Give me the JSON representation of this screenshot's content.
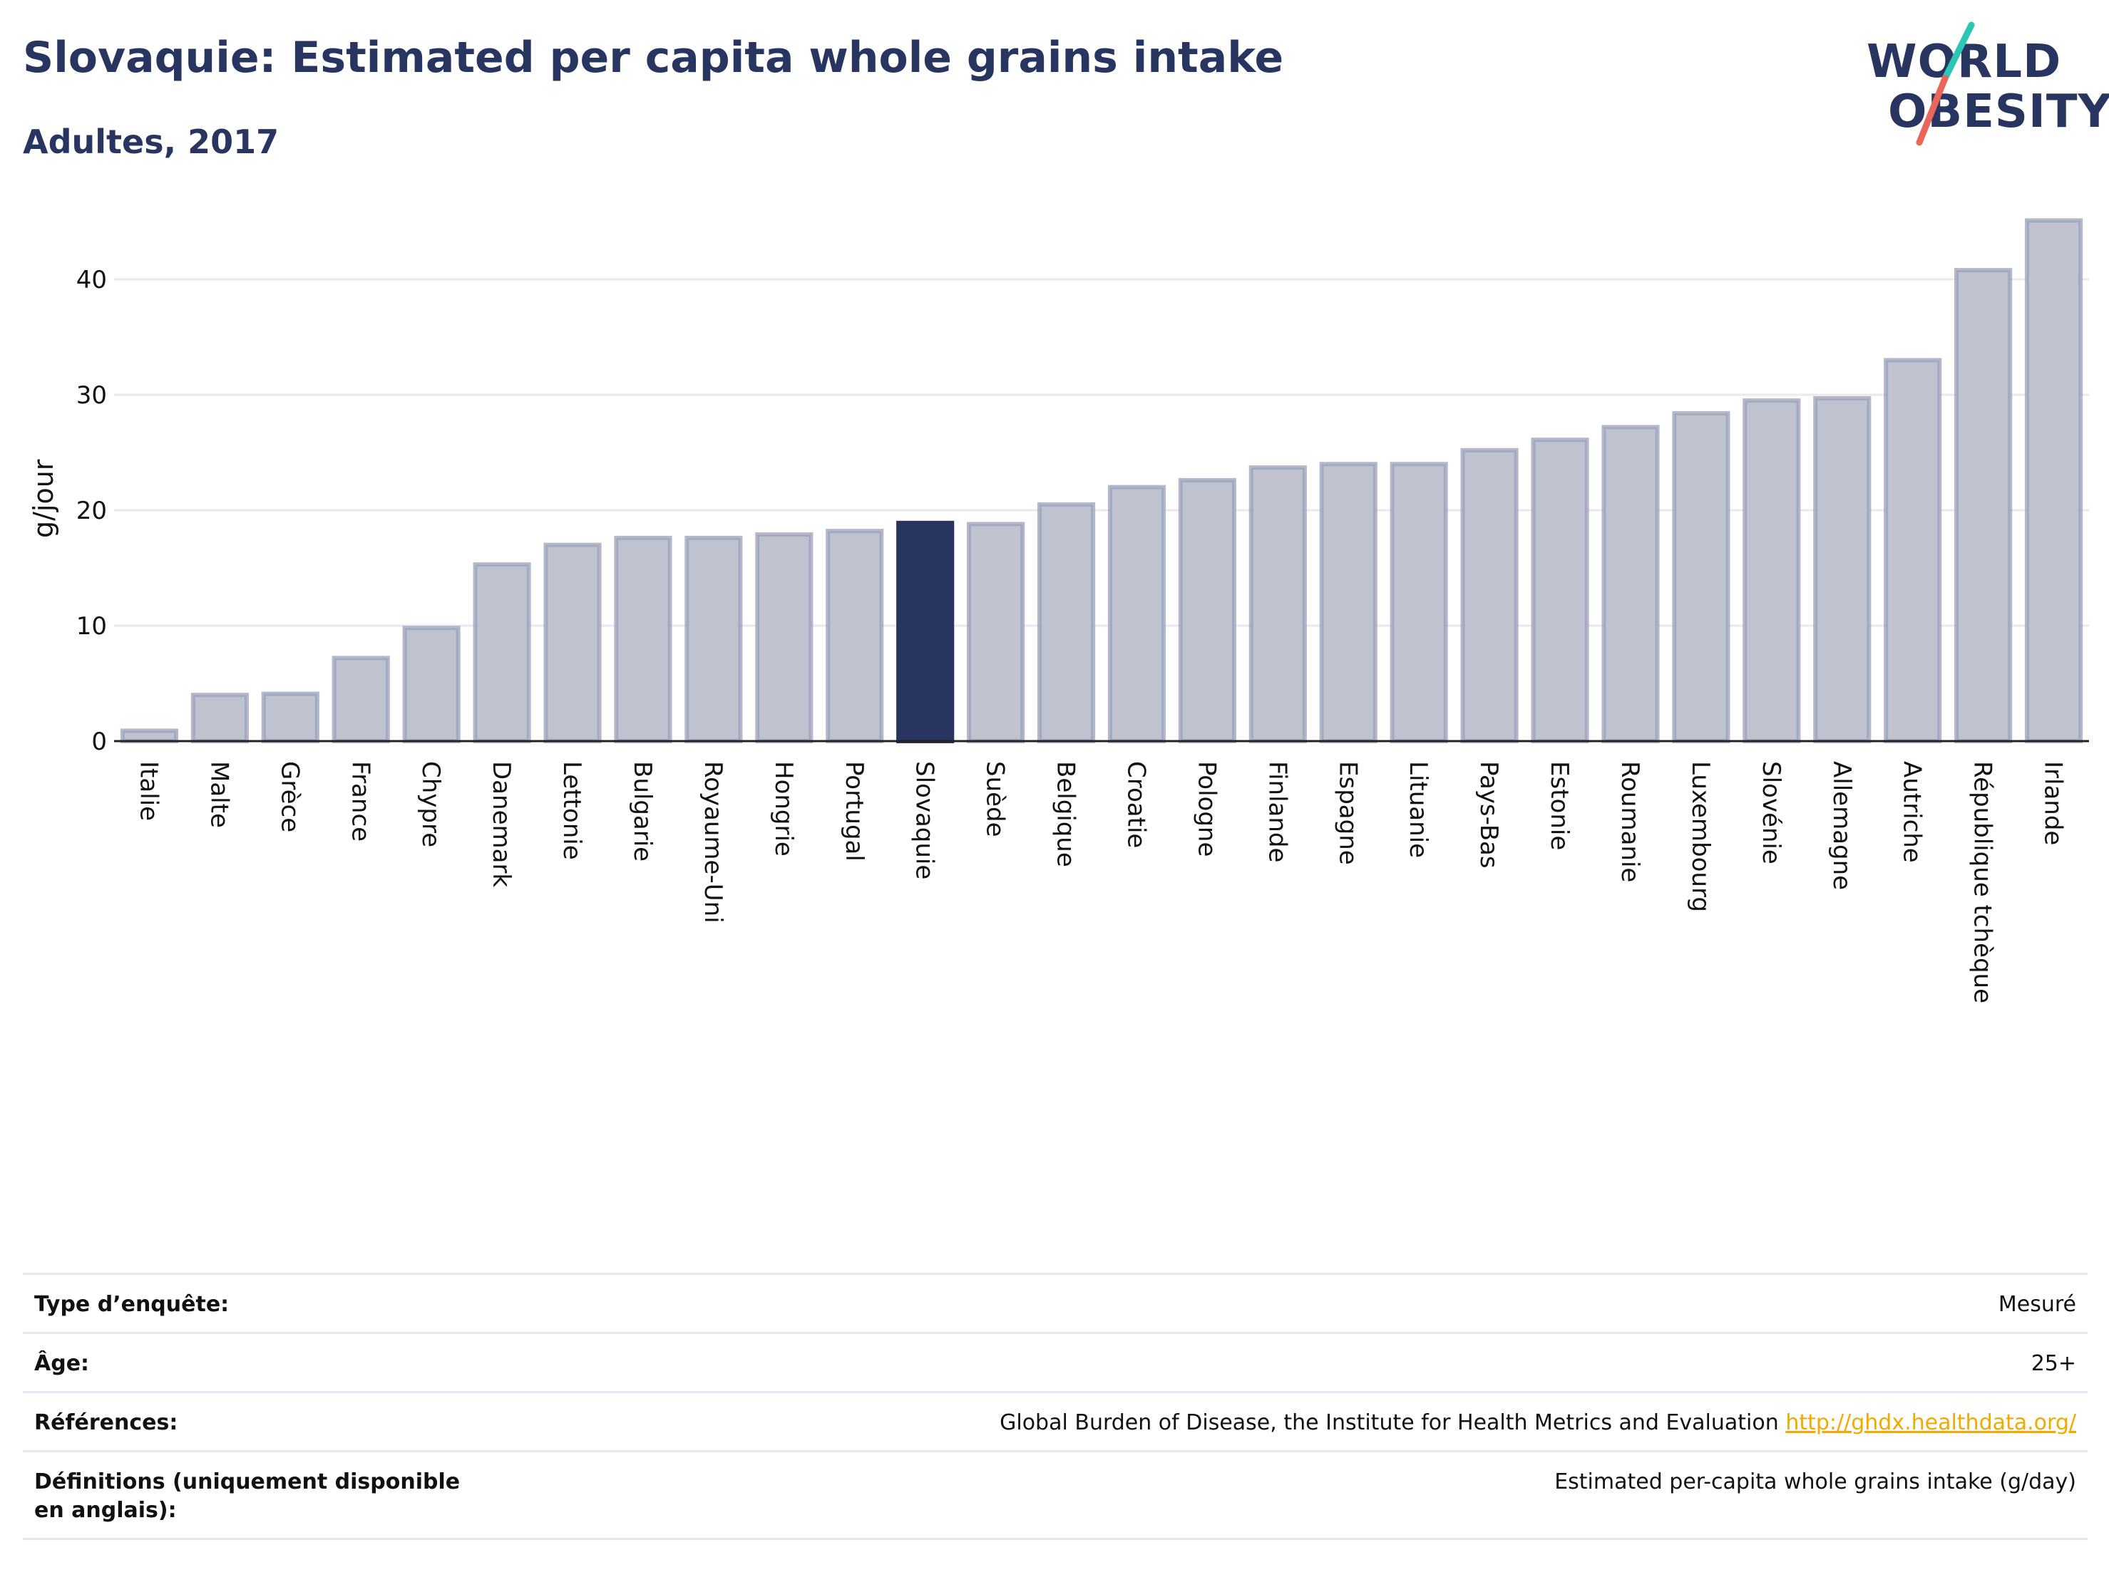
{
  "header": {
    "title": "Slovaquie: Estimated per capita whole grains intake",
    "subtitle": "Adultes, 2017"
  },
  "logo": {
    "line1": "WORLD",
    "line2": "OBESITY",
    "accent_colors": [
      "#2ec4b6",
      "#e8675a"
    ]
  },
  "chart_data": {
    "type": "bar",
    "ylabel": "g/jour",
    "xlabel": "",
    "ylim": [
      0,
      46
    ],
    "yticks": [
      0,
      10,
      20,
      30,
      40
    ],
    "grid": true,
    "highlight": "Slovaquie",
    "colors": {
      "bar": "#bfc3d0",
      "bar_border": "#9aa1ba",
      "highlight": "#283560",
      "grid": "#e8eaf0"
    },
    "categories": [
      "Italie",
      "Malte",
      "Grèce",
      "France",
      "Chypre",
      "Danemark",
      "Lettonie",
      "Bulgarie",
      "Royaume-Uni",
      "Hongrie",
      "Portugal",
      "Slovaquie",
      "Suède",
      "Belgique",
      "Croatie",
      "Pologne",
      "Finlande",
      "Espagne",
      "Lituanie",
      "Pays-Bas",
      "Estonie",
      "Roumanie",
      "Luxembourg",
      "Slovénie",
      "Allemagne",
      "Autriche",
      "République tchèque",
      "Irlande"
    ],
    "values": [
      0.9,
      4.0,
      4.1,
      7.2,
      9.8,
      15.3,
      17.0,
      17.6,
      17.6,
      17.9,
      18.2,
      18.9,
      18.8,
      20.5,
      22.0,
      22.6,
      23.7,
      24.0,
      24.0,
      25.2,
      26.1,
      27.2,
      28.4,
      29.5,
      29.7,
      33.0,
      40.8,
      45.1
    ]
  },
  "info_table": [
    {
      "label": "Type d’enquête:",
      "value": "Mesuré"
    },
    {
      "label": "Âge:",
      "value": "25+"
    },
    {
      "label": "Références:",
      "value": "Global Burden of Disease, the Institute for Health Metrics and Evaluation",
      "link": "http://ghdx.healthdata.org/"
    },
    {
      "label": "Définitions (uniquement disponible en anglais):",
      "value": "Estimated per-capita whole grains intake (g/day)"
    }
  ]
}
